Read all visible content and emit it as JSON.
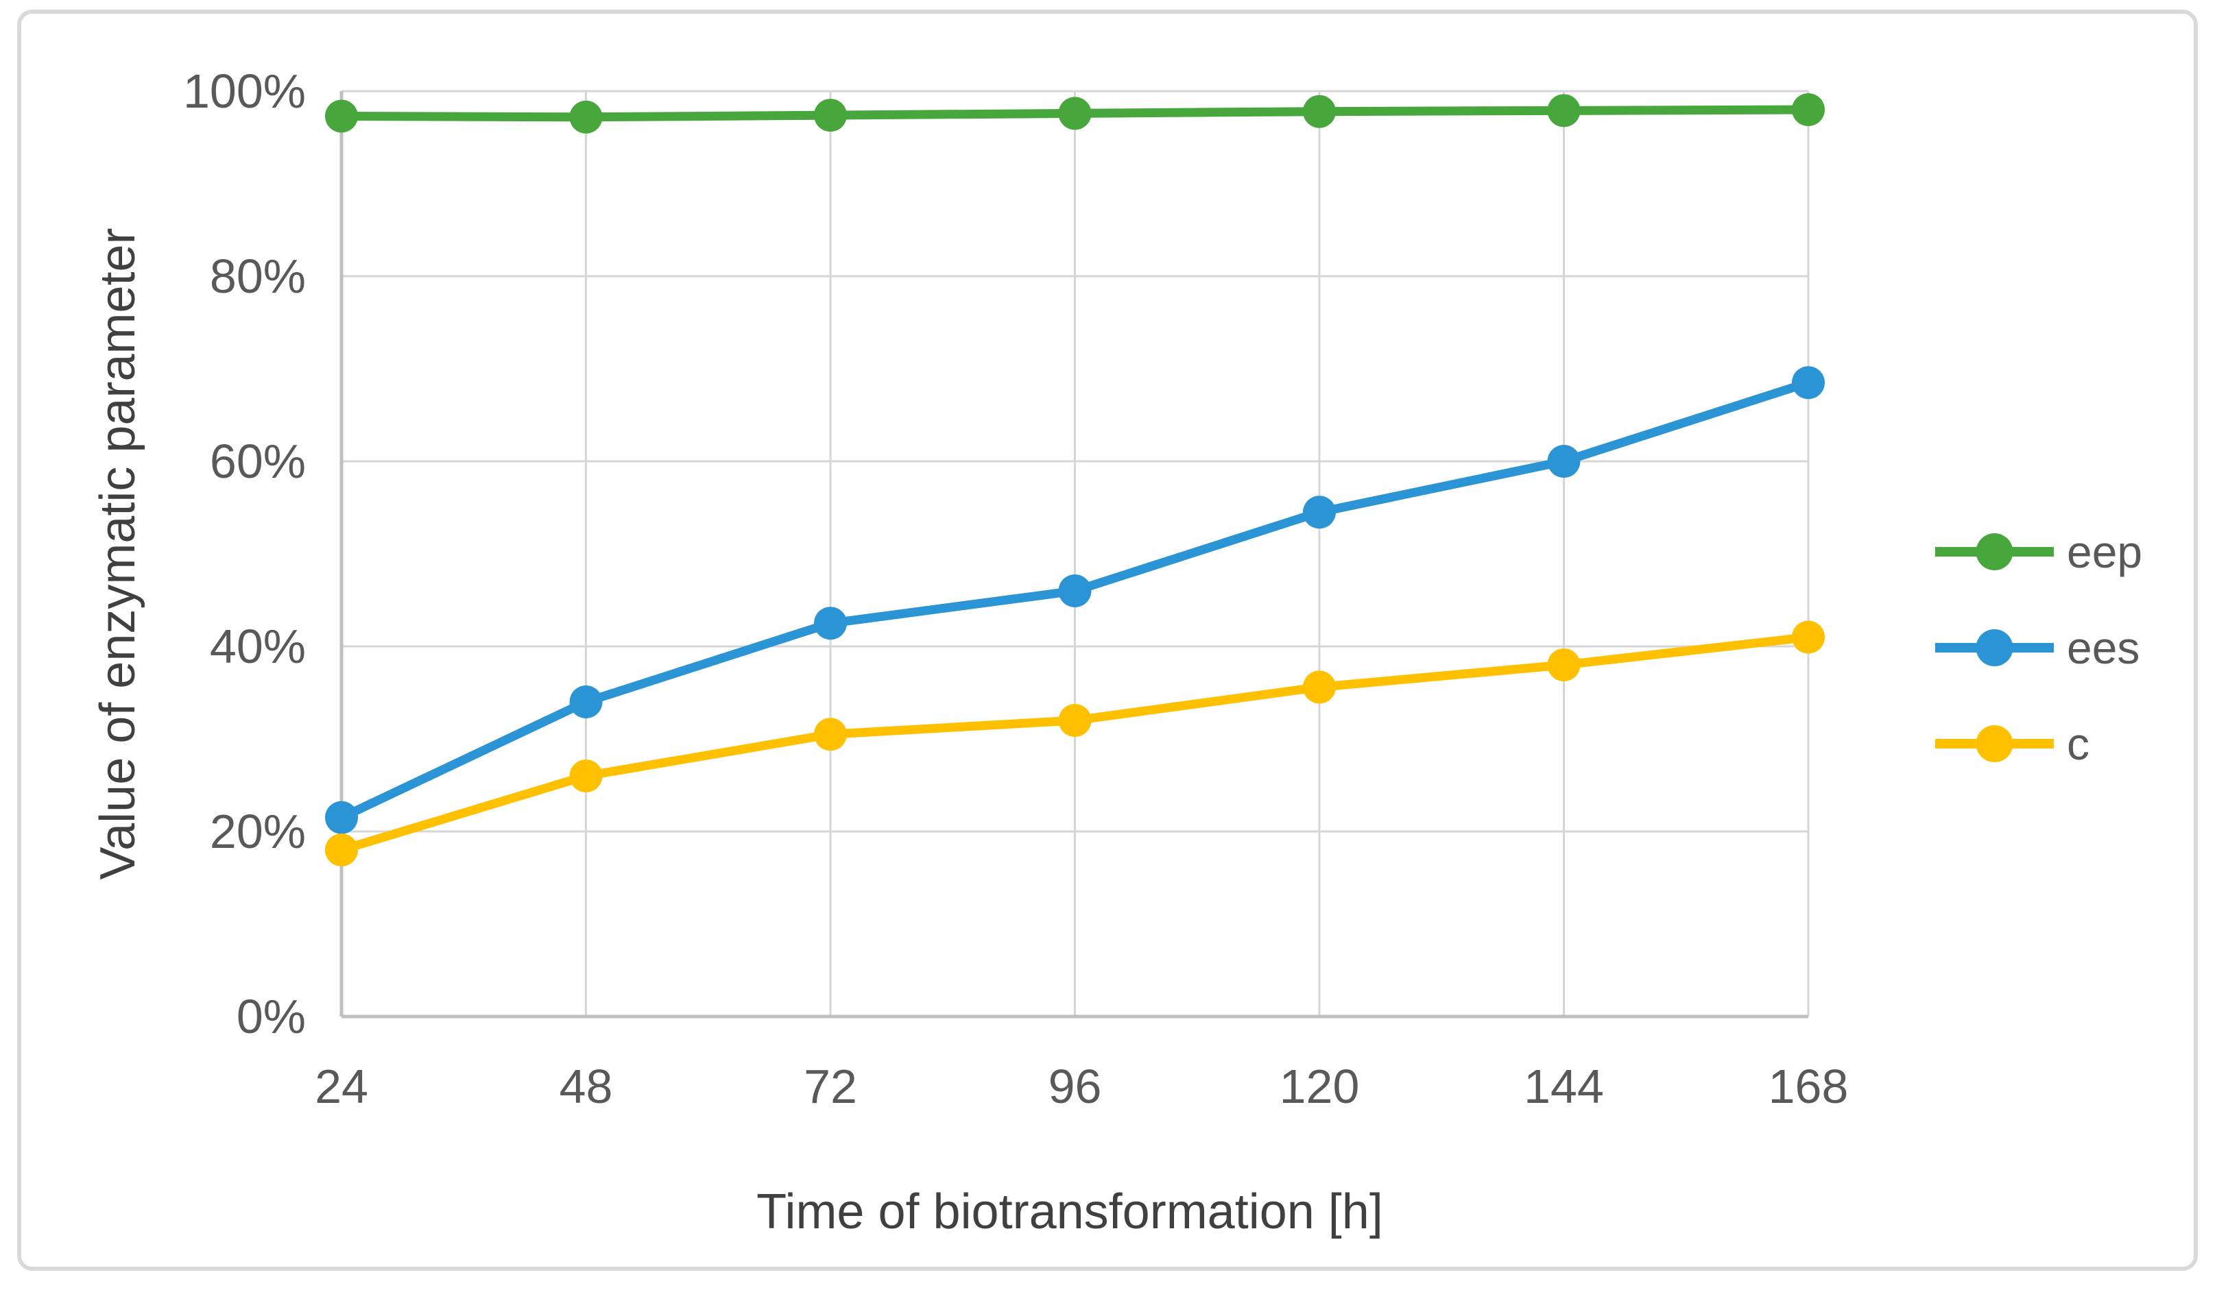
{
  "chart_data": {
    "type": "line",
    "title": "",
    "xlabel": "Time of biotransformation [h]",
    "ylabel": "Value of enzymatic parameter",
    "categories": [
      "24",
      "48",
      "72",
      "96",
      "120",
      "144",
      "168"
    ],
    "x_values": [
      24,
      48,
      72,
      96,
      120,
      144,
      168
    ],
    "series": [
      {
        "name": "eep",
        "color": "#47A63C",
        "values": [
          97.3,
          97.2,
          97.4,
          97.6,
          97.8,
          97.9,
          98.0
        ]
      },
      {
        "name": "ees",
        "color": "#2A94D4",
        "values": [
          21.5,
          34.0,
          42.5,
          46.0,
          54.5,
          60.0,
          68.5
        ]
      },
      {
        "name": "c",
        "color": "#FFC000",
        "values": [
          18.0,
          26.0,
          30.5,
          32.0,
          35.6,
          38.0,
          41.0
        ]
      }
    ],
    "ylim": [
      0,
      100
    ],
    "yticks": {
      "values": [
        0,
        20,
        40,
        60,
        80,
        100
      ],
      "labels": [
        "0%",
        "20%",
        "40%",
        "60%",
        "80%",
        "100%"
      ]
    },
    "grid": true,
    "legend_position": "right",
    "marker": "circle"
  },
  "styles": {
    "background": "#FFFFFF",
    "grid_color": "#D6D6D6",
    "axis_color": "#BFBFBF",
    "tick_text_color": "#595959",
    "title_text_color": "#404040",
    "frame_border_color": "#D9D9D9"
  }
}
